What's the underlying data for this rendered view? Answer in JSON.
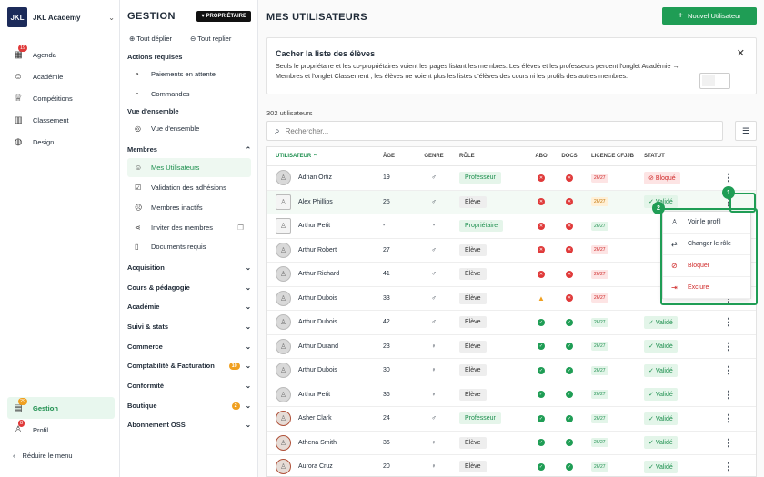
{
  "nav": {
    "brand_logo": "JKL",
    "brand_name": "JKL Academy",
    "items": [
      {
        "label": "Agenda",
        "badge": "19"
      },
      {
        "label": "Académie",
        "badge": ""
      },
      {
        "label": "Compétitions",
        "badge": ""
      },
      {
        "label": "Classement",
        "badge": ""
      },
      {
        "label": "Design",
        "badge": ""
      }
    ],
    "bottom": [
      {
        "label": "Gestion",
        "badge": "29"
      },
      {
        "label": "Profil",
        "badge": "8"
      }
    ],
    "reduce_label": "Réduire le menu"
  },
  "gestion": {
    "title": "GESTION",
    "owner_pill": "PROPRIÉTAIRE",
    "expand_all": "Tout déplier",
    "collapse_all": "Tout replier",
    "actions_title": "Actions requises",
    "actions": [
      {
        "label": "Paiements en attente",
        "badge": "10"
      },
      {
        "label": "Commandes",
        "badge": "2"
      }
    ],
    "overview_title": "Vue d'ensemble",
    "overview_item": "Vue d'ensemble",
    "members_title": "Membres",
    "members_items": [
      "Mes Utilisateurs",
      "Validation des adhésions",
      "Membres inactifs",
      "Inviter des membres",
      "Documents requis"
    ],
    "sections": [
      {
        "label": "Acquisition",
        "badge": ""
      },
      {
        "label": "Cours & pédagogie",
        "badge": ""
      },
      {
        "label": "Académie",
        "badge": ""
      },
      {
        "label": "Suivi & stats",
        "badge": ""
      },
      {
        "label": "Commerce",
        "badge": ""
      },
      {
        "label": "Comptabilité & Facturation",
        "badge": "10"
      },
      {
        "label": "Conformité",
        "badge": ""
      },
      {
        "label": "Boutique",
        "badge": "2"
      },
      {
        "label": "Abonnement OSS",
        "badge": ""
      }
    ]
  },
  "main": {
    "title": "MES UTILISATEURS",
    "new_button": "Nouvel Utilisateur",
    "notice": {
      "title": "Cacher la liste des élèves",
      "body": "Seuls le propriétaire et les co-propriétaires voient les pages listant les membres. Les élèves et les professeurs perdent l'onglet Académie → Membres et l'onglet Classement ; les élèves ne voient plus les listes d'élèves des cours ni les profils des autres membres."
    },
    "count": "302 utilisateurs",
    "search_placeholder": "Rechercher...",
    "columns": {
      "user": "UTILISATEUR",
      "age": "ÂGE",
      "gender": "GENRE",
      "role": "RÔLE",
      "abo": "ABO",
      "docs": "DOCS",
      "license": "LICENCE CFJJB",
      "status": "STATUT"
    },
    "rows": [
      {
        "name": "Adrian Ortiz",
        "age": "19",
        "gender": "♂",
        "role": "Professeur",
        "abo": "r",
        "docs": "r",
        "lic": "26/27",
        "lic_color": "r",
        "status": "Bloqué",
        "avatar": "gray"
      },
      {
        "name": "Alex Phillips",
        "age": "25",
        "gender": "♂",
        "role": "Élève",
        "abo": "r",
        "docs": "r",
        "lic": "26/27",
        "lic_color": "o",
        "status": "Validé",
        "avatar": "sq"
      },
      {
        "name": "Arthur Petit",
        "age": "-",
        "gender": "-",
        "role": "Propriétaire",
        "abo": "r",
        "docs": "r",
        "lic": "26/27",
        "lic_color": "g",
        "status": "",
        "avatar": "sq"
      },
      {
        "name": "Arthur Robert",
        "age": "27",
        "gender": "♂",
        "role": "Élève",
        "abo": "r",
        "docs": "r",
        "lic": "26/27",
        "lic_color": "r",
        "status": "",
        "avatar": "gray"
      },
      {
        "name": "Arthur Richard",
        "age": "41",
        "gender": "♂",
        "role": "Élève",
        "abo": "r",
        "docs": "r",
        "lic": "26/27",
        "lic_color": "r",
        "status": "",
        "avatar": "gray"
      },
      {
        "name": "Arthur Dubois",
        "age": "33",
        "gender": "♂",
        "role": "Élève",
        "abo": "w",
        "docs": "r",
        "lic": "26/27",
        "lic_color": "r",
        "status": "",
        "avatar": "gray"
      },
      {
        "name": "Arthur Dubois",
        "age": "42",
        "gender": "♂",
        "role": "Élève",
        "abo": "g",
        "docs": "g",
        "lic": "26/27",
        "lic_color": "g",
        "status": "Validé",
        "avatar": "gray"
      },
      {
        "name": "Arthur Durand",
        "age": "23",
        "gender": "♀",
        "role": "Élève",
        "abo": "g",
        "docs": "g",
        "lic": "26/27",
        "lic_color": "g",
        "status": "Validé",
        "avatar": "gray"
      },
      {
        "name": "Arthur Dubois",
        "age": "30",
        "gender": "♀",
        "role": "Élève",
        "abo": "g",
        "docs": "g",
        "lic": "26/27",
        "lic_color": "g",
        "status": "Validé",
        "avatar": "gray"
      },
      {
        "name": "Arthur Petit",
        "age": "36",
        "gender": "♀",
        "role": "Élève",
        "abo": "g",
        "docs": "g",
        "lic": "26/27",
        "lic_color": "g",
        "status": "Validé",
        "avatar": "gray"
      },
      {
        "name": "Asher Clark",
        "age": "24",
        "gender": "♂",
        "role": "Professeur",
        "abo": "g",
        "docs": "g",
        "lic": "26/27",
        "lic_color": "g",
        "status": "Validé",
        "avatar": "red"
      },
      {
        "name": "Athena Smith",
        "age": "36",
        "gender": "♀",
        "role": "Élève",
        "abo": "g",
        "docs": "g",
        "lic": "26/27",
        "lic_color": "g",
        "status": "Validé",
        "avatar": "red"
      },
      {
        "name": "Aurora Cruz",
        "age": "20",
        "gender": "♀",
        "role": "Élève",
        "abo": "g",
        "docs": "g",
        "lic": "26/27",
        "lic_color": "g",
        "status": "Validé",
        "avatar": "red"
      }
    ],
    "menu": [
      "Voir le profil",
      "Changer le rôle",
      "Bloquer",
      "Exclure"
    ],
    "callouts": [
      "1",
      "2"
    ]
  },
  "colors": {
    "accent": "#1f9d55",
    "danger": "#e03a3a",
    "warning": "#f0a020"
  }
}
